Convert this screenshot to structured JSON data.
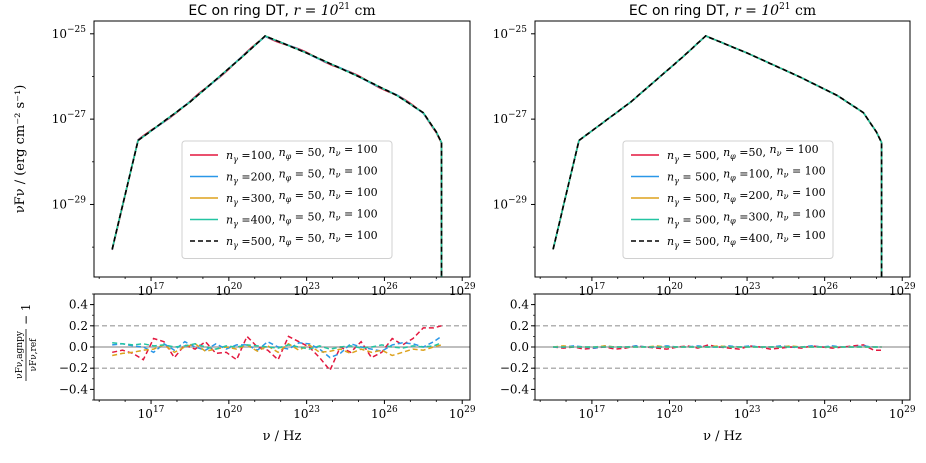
{
  "colors": {
    "red": "#e3173e",
    "blue": "#2a97e8",
    "yellow": "#dda21d",
    "green": "#23c4a2",
    "ref": "#000000",
    "guide": "#999999",
    "zero": "#aaaaaa"
  },
  "chart_data": [
    {
      "id": "left-top",
      "type": "line",
      "title_prefix": "EC on ring DT, ",
      "title_math": "r = 10",
      "title_exp": "21",
      "title_unit": " cm",
      "ylabel": "νFν / (erg cm⁻² s⁻¹)",
      "xscale": "log",
      "yscale": "log",
      "xlim_log10": [
        14.8,
        29.3
      ],
      "ylim_log10": [
        -30.7,
        -24.7
      ],
      "xticks": [
        {
          "base": "10",
          "exp": "17",
          "v": 17
        },
        {
          "base": "10",
          "exp": "20",
          "v": 20
        },
        {
          "base": "10",
          "exp": "23",
          "v": 23
        },
        {
          "base": "10",
          "exp": "26",
          "v": 26
        },
        {
          "base": "10",
          "exp": "29",
          "v": 29
        }
      ],
      "yticks": [
        {
          "base": "10",
          "exp": "−25",
          "v": -25
        },
        {
          "base": "10",
          "exp": "−27",
          "v": -27
        },
        {
          "base": "10",
          "exp": "−29",
          "v": -29
        }
      ],
      "sed_knots": {
        "log_nu": [
          15.5,
          16.5,
          18.5,
          20.5,
          21.4,
          23.0,
          25.0,
          26.5,
          27.5,
          28.0,
          28.2
        ],
        "log_nuFnu": [
          -30.05,
          -27.5,
          -26.6,
          -25.55,
          -25.05,
          -25.45,
          -26.0,
          -26.45,
          -26.85,
          -27.3,
          -27.55
        ]
      },
      "cutoff_log_nu": 28.2,
      "cutoff_log_nuFnu": -30.7,
      "legend_position": "center",
      "series": [
        {
          "name": "nγ =100, nφ = 50, nν = 100",
          "color_key": "red",
          "dash": "solid",
          "bias": 0.02
        },
        {
          "name": "nγ =200, nφ = 50, nν = 100",
          "color_key": "blue",
          "dash": "solid",
          "bias": 0.01
        },
        {
          "name": "nγ =300, nφ = 50, nν = 100",
          "color_key": "yellow",
          "dash": "solid",
          "bias": 0.0
        },
        {
          "name": "nγ =400, nφ = 50, nν = 100",
          "color_key": "green",
          "dash": "solid",
          "bias": 0.0
        },
        {
          "name": "nγ =500, nφ = 50, nν = 100",
          "color_key": "ref",
          "dash": "dashed",
          "bias": 0.0
        }
      ],
      "legend_parts": [
        [
          "n",
          "γ",
          " =100, ",
          "n",
          "φ",
          " = 50, ",
          "n",
          "ν",
          " = 100"
        ],
        [
          "n",
          "γ",
          " =200, ",
          "n",
          "φ",
          " = 50, ",
          "n",
          "ν",
          " = 100"
        ],
        [
          "n",
          "γ",
          " =300, ",
          "n",
          "φ",
          " = 50, ",
          "n",
          "ν",
          " = 100"
        ],
        [
          "n",
          "γ",
          " =400, ",
          "n",
          "φ",
          " = 50, ",
          "n",
          "ν",
          " = 100"
        ],
        [
          "n",
          "γ",
          " =500, ",
          "n",
          "φ",
          " = 50, ",
          "n",
          "ν",
          " = 100"
        ]
      ]
    },
    {
      "id": "right-top",
      "type": "line",
      "title_prefix": "EC on ring DT, ",
      "title_math": "r = 10",
      "title_exp": "21",
      "title_unit": " cm",
      "ylabel": "",
      "xscale": "log",
      "yscale": "log",
      "xlim_log10": [
        14.8,
        29.3
      ],
      "ylim_log10": [
        -30.7,
        -24.7
      ],
      "xticks": [
        {
          "base": "10",
          "exp": "17",
          "v": 17
        },
        {
          "base": "10",
          "exp": "20",
          "v": 20
        },
        {
          "base": "10",
          "exp": "23",
          "v": 23
        },
        {
          "base": "10",
          "exp": "26",
          "v": 26
        },
        {
          "base": "10",
          "exp": "29",
          "v": 29
        }
      ],
      "yticks": [
        {
          "base": "10",
          "exp": "−25",
          "v": -25
        },
        {
          "base": "10",
          "exp": "−27",
          "v": -27
        },
        {
          "base": "10",
          "exp": "−29",
          "v": -29
        }
      ],
      "sed_knots": {
        "log_nu": [
          15.5,
          16.5,
          18.5,
          20.5,
          21.4,
          23.0,
          25.0,
          26.5,
          27.5,
          28.0,
          28.2
        ],
        "log_nuFnu": [
          -30.05,
          -27.5,
          -26.6,
          -25.55,
          -25.05,
          -25.45,
          -26.0,
          -26.45,
          -26.85,
          -27.3,
          -27.55
        ]
      },
      "cutoff_log_nu": 28.2,
      "cutoff_log_nuFnu": -30.7,
      "legend_position": "center",
      "series": [
        {
          "name": "nγ = 500, nφ =50, nν = 100",
          "color_key": "red",
          "dash": "solid",
          "bias": 0.0
        },
        {
          "name": "nγ = 500, nφ =100, nν = 100",
          "color_key": "blue",
          "dash": "solid",
          "bias": 0.0
        },
        {
          "name": "nγ = 500, nφ =200, nν = 100",
          "color_key": "yellow",
          "dash": "solid",
          "bias": 0.0
        },
        {
          "name": "nγ = 500, nφ =300, nν = 100",
          "color_key": "green",
          "dash": "solid",
          "bias": 0.0
        },
        {
          "name": "nγ = 500, nφ =400, nν = 100",
          "color_key": "ref",
          "dash": "dashed",
          "bias": 0.0
        }
      ],
      "legend_parts": [
        [
          "n",
          "γ",
          " = 500, ",
          "n",
          "φ",
          " =50, ",
          "n",
          "ν",
          " = 100"
        ],
        [
          "n",
          "γ",
          " = 500, ",
          "n",
          "φ",
          " =100, ",
          "n",
          "ν",
          " = 100"
        ],
        [
          "n",
          "γ",
          " = 500, ",
          "n",
          "φ",
          " =200, ",
          "n",
          "ν",
          " = 100"
        ],
        [
          "n",
          "γ",
          " = 500, ",
          "n",
          "φ",
          " =300, ",
          "n",
          "ν",
          " = 100"
        ],
        [
          "n",
          "γ",
          " = 500, ",
          "n",
          "φ",
          " =400, ",
          "n",
          "ν",
          " = 100"
        ]
      ]
    },
    {
      "id": "left-bottom",
      "type": "line",
      "ylabel_num": "νFν,agnpy",
      "ylabel_den": "νFν,ref",
      "ylabel_tail": " − 1",
      "xlabel": "ν / Hz",
      "xscale": "log",
      "xlim_log10": [
        14.8,
        29.3
      ],
      "ylim": [
        -0.5,
        0.5
      ],
      "xticks": [
        {
          "base": "10",
          "exp": "17",
          "v": 17
        },
        {
          "base": "10",
          "exp": "20",
          "v": 20
        },
        {
          "base": "10",
          "exp": "23",
          "v": 23
        },
        {
          "base": "10",
          "exp": "26",
          "v": 26
        },
        {
          "base": "10",
          "exp": "29",
          "v": 29
        }
      ],
      "yticks": [
        {
          "label": "0.4",
          "v": 0.4
        },
        {
          "label": "0.2",
          "v": 0.2
        },
        {
          "label": "0.0",
          "v": 0.0
        },
        {
          "label": "−0.2",
          "v": -0.2
        },
        {
          "label": "−0.4",
          "v": -0.4
        }
      ],
      "guide_lines": [
        0.2,
        -0.2
      ],
      "zero_line": 0.0,
      "x_log_nu": [
        15.5,
        15.9,
        16.3,
        16.7,
        17.1,
        17.5,
        17.9,
        18.3,
        18.7,
        19.1,
        19.5,
        19.9,
        20.3,
        20.7,
        21.1,
        21.5,
        21.9,
        22.3,
        22.7,
        23.1,
        23.5,
        23.9,
        24.3,
        24.7,
        25.1,
        25.5,
        25.9,
        26.3,
        26.7,
        27.1,
        27.5,
        27.9,
        28.2
      ],
      "series": [
        {
          "color_key": "red",
          "dash": "dashed",
          "values": [
            -0.05,
            -0.03,
            -0.06,
            -0.12,
            0.08,
            0.05,
            -0.1,
            0.02,
            -0.02,
            0.05,
            -0.06,
            -0.05,
            -0.12,
            0.1,
            0.0,
            -0.03,
            -0.12,
            0.1,
            0.05,
            0.0,
            -0.1,
            -0.22,
            0.0,
            -0.05,
            0.05,
            -0.1,
            -0.05,
            0.08,
            0.02,
            0.08,
            0.18,
            0.18,
            0.2
          ]
        },
        {
          "color_key": "blue",
          "dash": "dashed",
          "values": [
            0.02,
            0.03,
            0.01,
            0.0,
            -0.05,
            0.03,
            -0.03,
            0.05,
            0.0,
            -0.03,
            0.03,
            -0.02,
            0.02,
            0.02,
            -0.03,
            0.05,
            0.0,
            -0.02,
            0.04,
            0.03,
            -0.02,
            -0.1,
            -0.06,
            0.03,
            0.0,
            -0.02,
            -0.04,
            0.02,
            0.04,
            0.03,
            0.0,
            0.05,
            0.1
          ]
        },
        {
          "color_key": "yellow",
          "dash": "dashed",
          "values": [
            -0.08,
            -0.06,
            -0.05,
            -0.03,
            -0.02,
            0.02,
            -0.05,
            0.0,
            0.03,
            -0.04,
            -0.02,
            0.0,
            -0.02,
            0.02,
            -0.04,
            0.01,
            -0.05,
            0.03,
            -0.03,
            0.02,
            -0.05,
            -0.04,
            -0.02,
            -0.06,
            -0.02,
            -0.05,
            -0.03,
            -0.08,
            -0.05,
            -0.02,
            -0.03,
            0.0,
            0.02
          ]
        },
        {
          "color_key": "green",
          "dash": "dashed",
          "values": [
            0.04,
            0.03,
            0.02,
            0.03,
            0.01,
            0.02,
            0.0,
            0.01,
            0.03,
            0.0,
            -0.02,
            0.01,
            0.0,
            0.02,
            0.01,
            0.0,
            -0.01,
            0.02,
            0.0,
            -0.02,
            0.01,
            -0.02,
            0.0,
            0.01,
            -0.01,
            0.0,
            0.02,
            0.0,
            -0.01,
            0.01,
            0.0,
            0.01,
            0.04
          ]
        }
      ]
    },
    {
      "id": "right-bottom",
      "type": "line",
      "xlabel": "ν / Hz",
      "xscale": "log",
      "xlim_log10": [
        14.8,
        29.3
      ],
      "ylim": [
        -0.5,
        0.5
      ],
      "xticks": [
        {
          "base": "10",
          "exp": "17",
          "v": 17
        },
        {
          "base": "10",
          "exp": "20",
          "v": 20
        },
        {
          "base": "10",
          "exp": "23",
          "v": 23
        },
        {
          "base": "10",
          "exp": "26",
          "v": 26
        },
        {
          "base": "10",
          "exp": "29",
          "v": 29
        }
      ],
      "yticks": [
        {
          "label": "0.4",
          "v": 0.4
        },
        {
          "label": "0.2",
          "v": 0.2
        },
        {
          "label": "0.0",
          "v": 0.0
        },
        {
          "label": "−0.2",
          "v": -0.2
        },
        {
          "label": "−0.4",
          "v": -0.4
        }
      ],
      "guide_lines": [
        0.2,
        -0.2
      ],
      "zero_line": 0.0,
      "x_log_nu": [
        15.5,
        15.9,
        16.3,
        16.7,
        17.1,
        17.5,
        17.9,
        18.3,
        18.7,
        19.1,
        19.5,
        19.9,
        20.3,
        20.7,
        21.1,
        21.5,
        21.9,
        22.3,
        22.7,
        23.1,
        23.5,
        23.9,
        24.3,
        24.7,
        25.1,
        25.5,
        25.9,
        26.3,
        26.7,
        27.1,
        27.5,
        27.9,
        28.2
      ],
      "series": [
        {
          "color_key": "red",
          "dash": "dashed",
          "values": [
            0.0,
            -0.01,
            0.0,
            -0.02,
            -0.01,
            0.0,
            -0.02,
            -0.01,
            0.01,
            0.0,
            -0.01,
            -0.02,
            0.0,
            0.01,
            -0.01,
            0.02,
            0.0,
            -0.01,
            -0.02,
            0.01,
            0.0,
            -0.02,
            -0.01,
            0.0,
            -0.01,
            0.01,
            0.0,
            -0.01,
            0.0,
            0.01,
            0.02,
            -0.03,
            -0.03
          ]
        },
        {
          "color_key": "blue",
          "dash": "dashed",
          "values": [
            0.0,
            0.0,
            0.01,
            0.0,
            -0.01,
            0.01,
            0.0,
            0.0,
            0.01,
            0.0,
            0.0,
            0.01,
            0.0,
            0.0,
            0.01,
            0.0,
            0.0,
            0.01,
            0.0,
            0.01,
            0.0,
            0.0,
            0.01,
            0.0,
            0.0,
            0.01,
            0.0,
            0.01,
            0.0,
            0.0,
            0.01,
            0.0,
            0.0
          ]
        },
        {
          "color_key": "yellow",
          "dash": "dashed",
          "values": [
            0.0,
            0.01,
            0.0,
            0.0,
            0.0,
            0.01,
            0.0,
            0.0,
            0.0,
            0.0,
            0.01,
            0.0,
            0.0,
            0.0,
            0.0,
            0.0,
            0.01,
            0.0,
            0.0,
            0.0,
            0.0,
            0.0,
            0.0,
            0.01,
            0.0,
            0.0,
            0.0,
            0.0,
            0.0,
            0.0,
            0.0,
            0.0,
            0.0
          ]
        },
        {
          "color_key": "green",
          "dash": "dashed",
          "values": [
            0.0,
            0.0,
            0.0,
            0.0,
            0.0,
            0.0,
            0.0,
            0.0,
            0.0,
            0.0,
            0.0,
            0.0,
            0.0,
            0.0,
            0.0,
            0.0,
            0.0,
            0.0,
            0.0,
            0.0,
            0.0,
            0.0,
            0.0,
            0.0,
            0.0,
            0.0,
            0.0,
            0.0,
            0.0,
            0.0,
            0.0,
            0.0,
            0.0
          ]
        }
      ]
    }
  ]
}
